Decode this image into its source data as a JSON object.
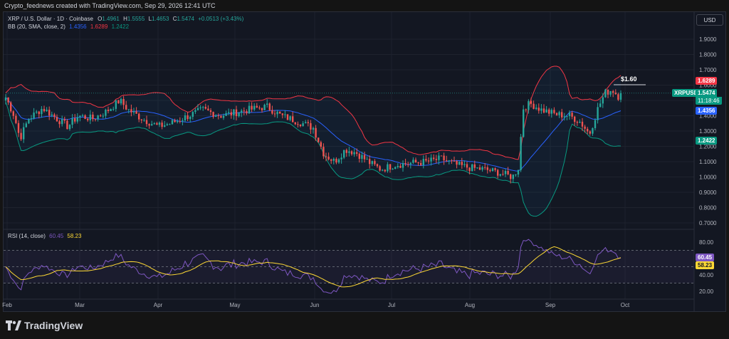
{
  "header": {
    "caption": "Crypto_feednews created with TradingView.com, Sep 29, 2026 12:41 UTC"
  },
  "legend": {
    "symbol": "XRP / U.S. Dollar · 1D · Coinbase",
    "open_label": "O",
    "open": "1.4961",
    "high_label": "H",
    "high": "1.5555",
    "low_label": "L",
    "low": "1.4653",
    "close_label": "C",
    "close": "1.5474",
    "change": "+0.0513 (+3.43%)",
    "bb_name": "BB (20, SMA, close, 2)",
    "bb_basis": "1.4356",
    "bb_upper": "1.6289",
    "bb_lower": "1.2422",
    "rsi_name": "RSI (14, close)",
    "rsi_value": "60.45",
    "rsi_ma": "58.23"
  },
  "currency_button": "USD",
  "price_axis": [
    "1.9000",
    "1.8000",
    "1.7000",
    "1.6000",
    "1.5000",
    "1.4000",
    "1.3000",
    "1.2000",
    "1.1000",
    "1.0000",
    "0.9000",
    "0.8000",
    "0.7000"
  ],
  "rsi_axis": [
    "80.00",
    "60.00",
    "40.00",
    "20.00"
  ],
  "time_axis": [
    "Feb",
    "Mar",
    "Apr",
    "May",
    "Jun",
    "Jul",
    "Aug",
    "Sep",
    "Oct"
  ],
  "tags": {
    "upper": "1.6289",
    "symbol": "XRPUSD",
    "price": "1.5474",
    "countdown": "11:18:46",
    "basis": "1.4356",
    "lower": "1.2422",
    "rsi": "60.45",
    "rsi_ma": "58.23"
  },
  "annotation": "$1.60",
  "footer": {
    "brand": "TradingView"
  },
  "colors": {
    "up": "#26a69a",
    "down": "#ef5350",
    "bb_basis": "#2962ff",
    "bb_upper": "#f23645",
    "bb_lower": "#089981",
    "rsi_line": "#7e57c2",
    "rsi_ma": "#fdd835",
    "price_tag": "#089981"
  },
  "chart_data": {
    "type": "candlestick",
    "symbol": "XRPUSD",
    "ylim": [
      0.65,
      2.0
    ],
    "series": [
      {
        "name": "XRP / U.S. Dollar",
        "anchors_price": [
          [
            "Feb",
            1.45
          ],
          [
            "Mar",
            1.38
          ],
          [
            "Apr",
            1.33
          ],
          [
            "May",
            1.4
          ],
          [
            "Jun",
            1.12
          ],
          [
            "Jul",
            1.07
          ],
          [
            "Aug",
            1.02
          ],
          [
            "Aug 20",
            1.0
          ],
          [
            "Aug 23",
            1.45
          ],
          [
            "Sep",
            1.38
          ],
          [
            "Sep 28",
            1.5474
          ]
        ]
      },
      {
        "name": "BB Basis",
        "last": 1.4356
      },
      {
        "name": "BB Upper",
        "last": 1.6289
      },
      {
        "name": "BB Lower",
        "last": 1.2422
      }
    ],
    "rsi": {
      "ylim": [
        0,
        100
      ],
      "levels": [
        70,
        30,
        50
      ],
      "last": 60.45,
      "ma_last": 58.23
    }
  }
}
